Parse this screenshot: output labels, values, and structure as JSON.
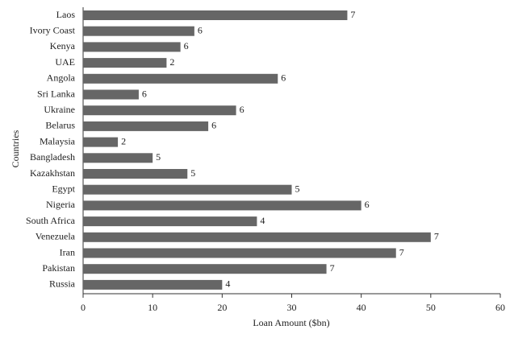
{
  "chart_data": {
    "type": "barh",
    "xlabel": "Loan Amount ($bn)",
    "ylabel": "Countries",
    "categories": [
      "Laos",
      "Ivory Coast",
      "Kenya",
      "UAE",
      "Angola",
      "Sri Lanka",
      "Ukraine",
      "Belarus",
      "Malaysia",
      "Bangladesh",
      "Kazakhstan",
      "Egypt",
      "Nigeria",
      "South Africa",
      "Venezuela",
      "Iran",
      "Pakistan",
      "Russia"
    ],
    "values": [
      38,
      16,
      14,
      12,
      28,
      8,
      22,
      18,
      5,
      10,
      15,
      30,
      40,
      25,
      50,
      45,
      35,
      20
    ],
    "labels": [
      7,
      6,
      6,
      2,
      6,
      6,
      6,
      6,
      2,
      5,
      5,
      5,
      6,
      4,
      7,
      7,
      7,
      4
    ],
    "color": "#666666",
    "xlim": [
      0,
      60
    ],
    "xticks": [
      0,
      10,
      20,
      30,
      40,
      50,
      60
    ]
  }
}
